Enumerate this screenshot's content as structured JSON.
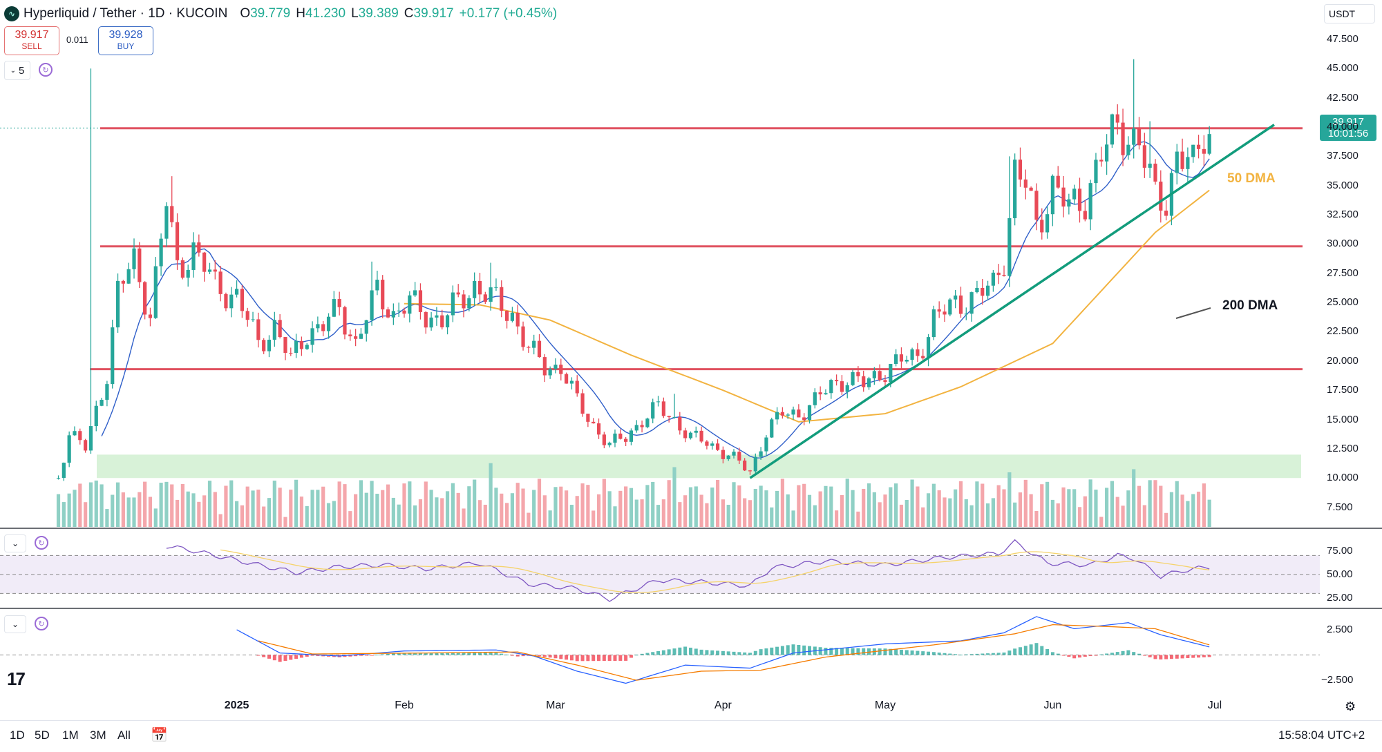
{
  "header": {
    "title": "Hyperliquid / Tether · 1D · KUCOIN",
    "open_label": "O",
    "open": "39.779",
    "high_label": "H",
    "high": "41.230",
    "low_label": "L",
    "low": "39.389",
    "close_label": "C",
    "close": "39.917",
    "change": "+0.177 (+0.45%)"
  },
  "trade": {
    "sell_price": "39.917",
    "sell_label": "SELL",
    "spread": "0.011",
    "buy_price": "39.928",
    "buy_label": "BUY"
  },
  "interval_count": "5",
  "currency": "USDT",
  "last_price": {
    "price": "39.917",
    "countdown": "10:01:56"
  },
  "annotations": {
    "dma50": "50 DMA",
    "dma200": "200 DMA"
  },
  "timeframes": [
    "1D",
    "5D",
    "1M",
    "3M",
    "All"
  ],
  "clock": "15:58:04 UTC+2",
  "colors": {
    "up": "#26a69a",
    "down": "#e84a57",
    "level": "#e05260",
    "trend": "#129c7c",
    "ma_fast": "#2f5fc9",
    "ma_slow": "#f2b340",
    "zone": "#d8f2d8",
    "rsi": "#7e57c2"
  },
  "chart_data": [
    {
      "type": "candlestick",
      "pair": "Hyperliquid / Tether",
      "interval": "1D",
      "exchange": "KUCOIN",
      "x_ticks": [
        {
          "date": "2025-01-01",
          "label": "2025",
          "bold": true
        },
        {
          "date": "2025-02-01",
          "label": "Feb"
        },
        {
          "date": "2025-03-01",
          "label": "Mar"
        },
        {
          "date": "2025-04-01",
          "label": "Apr"
        },
        {
          "date": "2025-05-01",
          "label": "May"
        },
        {
          "date": "2025-06-01",
          "label": "Jun"
        },
        {
          "date": "2025-07-01",
          "label": "Jul"
        }
      ],
      "x_range": [
        "2024-11-26",
        "2025-07-18"
      ],
      "y_range": [
        6.0,
        48.5
      ],
      "y_ticks": [
        "47.500",
        "45.000",
        "42.500",
        "40.000",
        "37.500",
        "35.000",
        "32.500",
        "30.000",
        "27.500",
        "25.000",
        "22.500",
        "20.000",
        "17.500",
        "15.000",
        "12.500",
        "10.000",
        "7.500"
      ],
      "close_anchors": [
        [
          "2024-11-29",
          10
        ],
        [
          "2024-12-01",
          14
        ],
        [
          "2024-12-04",
          12.5
        ],
        [
          "2024-12-08",
          19
        ],
        [
          "2024-12-10",
          26
        ],
        [
          "2024-12-13",
          28.5
        ],
        [
          "2024-12-16",
          24
        ],
        [
          "2024-12-19",
          33.5
        ],
        [
          "2024-12-21",
          28
        ],
        [
          "2024-12-24",
          29.5
        ],
        [
          "2024-12-28",
          26.5
        ],
        [
          "2025-01-01",
          25.5
        ],
        [
          "2025-01-05",
          21.5
        ],
        [
          "2025-01-08",
          23
        ],
        [
          "2025-01-11",
          20
        ],
        [
          "2025-01-14",
          22.5
        ],
        [
          "2025-01-17",
          23
        ],
        [
          "2025-01-20",
          24.5
        ],
        [
          "2025-01-23",
          21.5
        ],
        [
          "2025-01-27",
          26
        ],
        [
          "2025-01-30",
          24
        ],
        [
          "2025-02-02",
          25
        ],
        [
          "2025-02-05",
          24
        ],
        [
          "2025-02-08",
          23.5
        ],
        [
          "2025-02-11",
          25
        ],
        [
          "2025-02-14",
          26.5
        ],
        [
          "2025-02-18",
          25
        ],
        [
          "2025-02-21",
          24
        ],
        [
          "2025-02-24",
          21
        ],
        [
          "2025-02-27",
          19.5
        ],
        [
          "2025-03-02",
          19.5
        ],
        [
          "2025-03-05",
          16.5
        ],
        [
          "2025-03-08",
          14.5
        ],
        [
          "2025-03-11",
          12.8
        ],
        [
          "2025-03-14",
          13.5
        ],
        [
          "2025-03-17",
          15
        ],
        [
          "2025-03-20",
          16
        ],
        [
          "2025-03-23",
          15
        ],
        [
          "2025-03-26",
          13.5
        ],
        [
          "2025-03-29",
          13
        ],
        [
          "2025-04-02",
          12
        ],
        [
          "2025-04-06",
          10.5
        ],
        [
          "2025-04-09",
          14
        ],
        [
          "2025-04-12",
          15.5
        ],
        [
          "2025-04-15",
          15.5
        ],
        [
          "2025-04-18",
          16.5
        ],
        [
          "2025-04-21",
          18
        ],
        [
          "2025-04-24",
          18.5
        ],
        [
          "2025-04-27",
          18
        ],
        [
          "2025-04-30",
          19
        ],
        [
          "2025-05-04",
          20
        ],
        [
          "2025-05-07",
          20.5
        ],
        [
          "2025-05-10",
          23.5
        ],
        [
          "2025-05-14",
          25
        ],
        [
          "2025-05-18",
          25.5
        ],
        [
          "2025-05-21",
          26.5
        ],
        [
          "2025-05-23",
          29
        ],
        [
          "2025-05-25",
          36
        ],
        [
          "2025-05-27",
          35
        ],
        [
          "2025-05-29",
          31.5
        ],
        [
          "2025-06-01",
          35
        ],
        [
          "2025-06-04",
          33
        ],
        [
          "2025-06-07",
          34
        ],
        [
          "2025-06-10",
          37.5
        ],
        [
          "2025-06-13",
          40
        ],
        [
          "2025-06-15",
          39.5
        ],
        [
          "2025-06-17",
          38.5
        ],
        [
          "2025-06-20",
          34
        ],
        [
          "2025-06-22",
          34
        ],
        [
          "2025-06-24",
          37.5
        ],
        [
          "2025-06-27",
          36.5
        ],
        [
          "2025-06-29",
          39.8
        ],
        [
          "2025-06-30",
          39.917
        ]
      ],
      "spike_highs": [
        [
          "2024-12-05",
          45
        ],
        [
          "2024-12-20",
          35.8
        ],
        [
          "2025-01-26",
          28.5
        ],
        [
          "2025-02-17",
          28.4
        ],
        [
          "2025-03-23",
          17.2
        ],
        [
          "2025-05-24",
          37.5
        ],
        [
          "2025-06-16",
          45.8
        ],
        [
          "2025-06-19",
          40.5
        ]
      ],
      "dma50_anchors": [
        [
          "2025-02-01",
          24.9
        ],
        [
          "2025-02-15",
          24.8
        ],
        [
          "2025-02-28",
          23.5
        ],
        [
          "2025-03-15",
          20.5
        ],
        [
          "2025-04-01",
          17.5
        ],
        [
          "2025-04-15",
          14.8
        ],
        [
          "2025-05-01",
          15.5
        ],
        [
          "2025-05-15",
          17.8
        ],
        [
          "2025-06-01",
          21.5
        ],
        [
          "2025-06-10",
          26
        ],
        [
          "2025-06-20",
          31
        ],
        [
          "2025-06-30",
          34.6
        ]
      ],
      "horizontal_levels": [
        39.9,
        29.8,
        19.3
      ],
      "support_zone": [
        10,
        12
      ],
      "trendline": [
        [
          "2025-04-06",
          10
        ],
        [
          "2025-07-12",
          40.2
        ]
      ]
    },
    {
      "type": "line",
      "indicator": "RSI",
      "y_ticks": [
        "75.00",
        "50.00",
        "25.00"
      ],
      "y_range": [
        15,
        95
      ],
      "bands": [
        30,
        70
      ],
      "anchors": [
        [
          "2024-12-19",
          80
        ],
        [
          "2024-12-24",
          75
        ],
        [
          "2025-01-05",
          60
        ],
        [
          "2025-01-12",
          52
        ],
        [
          "2025-01-20",
          58
        ],
        [
          "2025-01-28",
          60
        ],
        [
          "2025-02-05",
          56
        ],
        [
          "2025-02-15",
          62
        ],
        [
          "2025-02-24",
          40
        ],
        [
          "2025-03-05",
          35
        ],
        [
          "2025-03-11",
          24
        ],
        [
          "2025-03-20",
          44
        ],
        [
          "2025-03-28",
          42
        ],
        [
          "2025-04-06",
          38
        ],
        [
          "2025-04-10",
          57
        ],
        [
          "2025-04-20",
          64
        ],
        [
          "2025-05-01",
          60
        ],
        [
          "2025-05-12",
          68
        ],
        [
          "2025-05-22",
          72
        ],
        [
          "2025-05-25",
          84
        ],
        [
          "2025-05-31",
          62
        ],
        [
          "2025-06-08",
          60
        ],
        [
          "2025-06-13",
          70
        ],
        [
          "2025-06-16",
          67
        ],
        [
          "2025-06-21",
          48
        ],
        [
          "2025-06-25",
          54
        ],
        [
          "2025-06-30",
          58
        ]
      ]
    },
    {
      "type": "line",
      "indicator": "MACD",
      "y_ticks": [
        "2.500",
        "−2.500"
      ],
      "y_range": [
        -4.2,
        4.0
      ],
      "macd_anchors": [
        [
          "2025-01-01",
          2.5
        ],
        [
          "2025-01-09",
          0.2
        ],
        [
          "2025-01-20",
          -0.1
        ],
        [
          "2025-02-01",
          0.4
        ],
        [
          "2025-02-18",
          0.5
        ],
        [
          "2025-02-25",
          -0.1
        ],
        [
          "2025-03-05",
          -1.6
        ],
        [
          "2025-03-14",
          -2.8
        ],
        [
          "2025-03-25",
          -1.0
        ],
        [
          "2025-04-06",
          -1.3
        ],
        [
          "2025-04-14",
          0.2
        ],
        [
          "2025-05-01",
          1.1
        ],
        [
          "2025-05-15",
          1.4
        ],
        [
          "2025-05-23",
          2.2
        ],
        [
          "2025-05-29",
          3.8
        ],
        [
          "2025-06-05",
          2.6
        ],
        [
          "2025-06-15",
          3.2
        ],
        [
          "2025-06-21",
          2.0
        ],
        [
          "2025-06-30",
          0.8
        ]
      ],
      "signal_anchors": [
        [
          "2025-01-05",
          1.4
        ],
        [
          "2025-01-15",
          0.1
        ],
        [
          "2025-02-05",
          0.2
        ],
        [
          "2025-02-22",
          0.3
        ],
        [
          "2025-03-05",
          -1.0
        ],
        [
          "2025-03-16",
          -2.5
        ],
        [
          "2025-03-28",
          -1.6
        ],
        [
          "2025-04-08",
          -1.5
        ],
        [
          "2025-04-20",
          -0.2
        ],
        [
          "2025-05-10",
          1.0
        ],
        [
          "2025-05-25",
          2.1
        ],
        [
          "2025-06-01",
          3.0
        ],
        [
          "2025-06-12",
          2.8
        ],
        [
          "2025-06-20",
          2.6
        ],
        [
          "2025-06-30",
          1.0
        ]
      ]
    }
  ]
}
